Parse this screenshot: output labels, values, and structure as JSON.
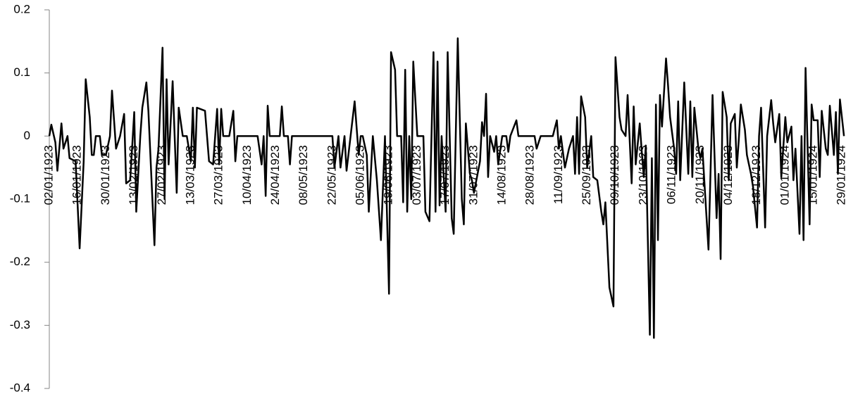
{
  "chart_data": {
    "type": "line",
    "color": "#000000",
    "xlim": [
      "02/01/1923",
      "31/01/1924"
    ],
    "xticks": [
      "02/01/1923",
      "16/01/1923",
      "30/01/1923",
      "13/02/1923",
      "27/02/1923",
      "13/03/1923",
      "27/03/1923",
      "10/04/1923",
      "24/04/1923",
      "08/05/1923",
      "22/05/1923",
      "05/06/1923",
      "19/06/1923",
      "03/07/1923",
      "17/07/1923",
      "31/07/1923",
      "14/08/1923",
      "28/08/1923",
      "11/09/1923",
      "25/09/1923",
      "09/10/1923",
      "23/10/1923",
      "06/11/1923",
      "20/11/1923",
      "04/12/1923",
      "18/12/1923",
      "01/01/1924",
      "15/01/1924",
      "29/01/1924"
    ],
    "ylim": [
      -0.4,
      0.2
    ],
    "yticks": [
      -0.4,
      -0.3,
      -0.2,
      -0.1,
      0,
      0.1,
      0.2
    ],
    "x": [
      "02/01/1923",
      "03/01/1923",
      "05/01/1923",
      "06/01/1923",
      "08/01/1923",
      "09/01/1923",
      "11/01/1923",
      "12/01/1923",
      "15/01/1923",
      "17/01/1923",
      "19/01/1923",
      "20/01/1923",
      "22/01/1923",
      "23/01/1923",
      "24/01/1923",
      "25/01/1923",
      "27/01/1923",
      "28/01/1923",
      "30/01/1923",
      "01/02/1923",
      "02/02/1923",
      "04/02/1923",
      "06/02/1923",
      "08/02/1923",
      "09/02/1923",
      "11/02/1923",
      "13/02/1923",
      "14/02/1923",
      "16/02/1923",
      "17/02/1923",
      "19/02/1923",
      "20/02/1923",
      "23/02/1923",
      "24/02/1923",
      "25/02/1923",
      "27/02/1923",
      "28/02/1923",
      "01/03/1923",
      "02/03/1923",
      "04/03/1923",
      "06/03/1923",
      "07/03/1923",
      "09/03/1923",
      "11/03/1923",
      "13/03/1923",
      "14/03/1923",
      "15/03/1923",
      "16/03/1923",
      "20/03/1923",
      "22/03/1923",
      "24/03/1923",
      "26/03/1923",
      "27/03/1923",
      "28/03/1923",
      "29/03/1923",
      "01/04/1923",
      "03/04/1923",
      "04/04/1923",
      "05/04/1923",
      "15/04/1923",
      "17/04/1923",
      "18/04/1923",
      "19/04/1923",
      "20/04/1923",
      "21/04/1923",
      "26/04/1923",
      "27/04/1923",
      "28/04/1923",
      "30/04/1923",
      "01/05/1923",
      "02/05/1923",
      "22/05/1923",
      "23/05/1923",
      "25/05/1923",
      "26/05/1923",
      "28/05/1923",
      "29/05/1923",
      "31/05/1923",
      "02/06/1923",
      "04/06/1923",
      "05/06/1923",
      "06/06/1923",
      "08/06/1923",
      "09/06/1923",
      "11/06/1923",
      "13/06/1923",
      "15/06/1923",
      "17/06/1923",
      "19/06/1923",
      "20/06/1923",
      "22/06/1923",
      "23/06/1923",
      "25/06/1923",
      "26/06/1923",
      "27/06/1923",
      "28/06/1923",
      "29/06/1923",
      "30/06/1923",
      "01/07/1923",
      "03/07/1923",
      "06/07/1923",
      "07/07/1923",
      "09/07/1923",
      "11/07/1923",
      "12/07/1923",
      "13/07/1923",
      "14/07/1923",
      "15/07/1923",
      "17/07/1923",
      "18/07/1923",
      "20/07/1923",
      "21/07/1923",
      "23/07/1923",
      "25/07/1923",
      "26/07/1923",
      "27/07/1923",
      "29/07/1923",
      "30/07/1923",
      "31/07/1923",
      "03/08/1923",
      "04/08/1923",
      "05/08/1923",
      "06/08/1923",
      "07/08/1923",
      "08/08/1923",
      "10/08/1923",
      "11/08/1923",
      "12/08/1923",
      "14/08/1923",
      "16/08/1923",
      "17/08/1923",
      "18/08/1923",
      "21/08/1923",
      "22/08/1923",
      "30/08/1923",
      "31/08/1923",
      "02/09/1923",
      "08/09/1923",
      "10/09/1923",
      "11/09/1923",
      "12/09/1923",
      "14/09/1923",
      "16/09/1923",
      "18/09/1923",
      "19/09/1923",
      "20/09/1923",
      "21/09/1923",
      "22/09/1923",
      "24/09/1923",
      "25/09/1923",
      "27/09/1923",
      "28/09/1923",
      "30/09/1923",
      "02/10/1923",
      "03/10/1923",
      "04/10/1923",
      "06/10/1923",
      "08/10/1923",
      "09/10/1923",
      "11/10/1923",
      "12/10/1923",
      "14/10/1923",
      "15/10/1923",
      "17/10/1923",
      "18/10/1923",
      "19/10/1923",
      "21/10/1923",
      "22/10/1923",
      "23/10/1923",
      "24/10/1923",
      "26/10/1923",
      "27/10/1923",
      "28/10/1923",
      "29/10/1923",
      "30/10/1923",
      "31/10/1923",
      "01/11/1923",
      "03/11/1923",
      "04/11/1923",
      "05/11/1923",
      "07/11/1923",
      "08/11/1923",
      "09/11/1923",
      "10/11/1923",
      "12/11/1923",
      "14/11/1923",
      "15/11/1923",
      "16/11/1923",
      "17/11/1923",
      "19/11/1923",
      "20/11/1923",
      "21/11/1923",
      "22/11/1923",
      "24/11/1923",
      "26/11/1923",
      "28/11/1923",
      "29/11/1923",
      "30/11/1923",
      "01/12/1923",
      "03/12/1923",
      "04/12/1923",
      "05/12/1923",
      "07/12/1923",
      "08/12/1923",
      "09/12/1923",
      "10/12/1923",
      "12/12/1923",
      "13/12/1923",
      "15/12/1923",
      "16/12/1923",
      "18/12/1923",
      "19/12/1923",
      "20/12/1923",
      "22/12/1923",
      "23/12/1923",
      "25/12/1923",
      "26/12/1923",
      "27/12/1923",
      "29/12/1923",
      "30/12/1923",
      "01/01/1924",
      "02/01/1924",
      "04/01/1924",
      "05/01/1924",
      "06/01/1924",
      "08/01/1924",
      "09/01/1924",
      "10/01/1924",
      "11/01/1924",
      "13/01/1924",
      "14/01/1924",
      "15/01/1924",
      "17/01/1924",
      "18/01/1924",
      "19/01/1924",
      "21/01/1924",
      "22/01/1924",
      "23/01/1924",
      "25/01/1924",
      "26/01/1924",
      "27/01/1924",
      "28/01/1924",
      "30/01/1924"
    ],
    "values": [
      0,
      0.018,
      -0.01,
      -0.055,
      0.02,
      -0.02,
      0,
      -0.035,
      -0.04,
      -0.178,
      -0.04,
      0.09,
      0.03,
      -0.03,
      -0.03,
      0,
      0,
      -0.03,
      -0.03,
      0,
      0.072,
      -0.02,
      0,
      0.035,
      -0.075,
      -0.07,
      0.038,
      -0.12,
      0,
      0.045,
      0.085,
      0.04,
      -0.173,
      -0.05,
      -0.02,
      0.14,
      -0.1,
      0.09,
      -0.045,
      0.087,
      -0.09,
      0.045,
      0,
      0,
      -0.04,
      0.045,
      -0.05,
      0.045,
      0.04,
      -0.04,
      -0.045,
      0.043,
      -0.045,
      0.043,
      0,
      0,
      0.04,
      -0.04,
      0,
      0,
      -0.045,
      0,
      -0.095,
      0.048,
      0,
      0,
      0.047,
      0,
      0,
      -0.045,
      0,
      0,
      -0.05,
      0,
      -0.05,
      0,
      -0.055,
      0,
      0.055,
      -0.03,
      0,
      0,
      -0.03,
      -0.12,
      0,
      -0.07,
      -0.165,
      0,
      -0.25,
      0.133,
      0.105,
      0,
      0,
      -0.105,
      0.105,
      -0.12,
      0,
      -0.1,
      0.118,
      0,
      0,
      -0.12,
      -0.135,
      0.133,
      -0.12,
      0.118,
      -0.11,
      0,
      -0.12,
      0.133,
      -0.13,
      -0.155,
      0.155,
      -0.1,
      -0.14,
      0.02,
      -0.06,
      -0.07,
      -0.09,
      -0.04,
      0.022,
      0,
      0.067,
      -0.065,
      0,
      -0.025,
      0,
      -0.045,
      0,
      0,
      -0.025,
      0,
      0.025,
      0,
      0,
      -0.02,
      0,
      0,
      0.025,
      -0.02,
      0,
      -0.05,
      -0.02,
      0,
      -0.06,
      0.03,
      -0.06,
      0.063,
      0.03,
      -0.05,
      0,
      -0.065,
      -0.07,
      -0.12,
      -0.14,
      -0.105,
      -0.24,
      -0.27,
      0.125,
      0.03,
      0.01,
      0,
      0.065,
      -0.075,
      0.047,
      -0.045,
      0.02,
      -0.025,
      -0.065,
      -0.015,
      -0.315,
      -0.035,
      -0.32,
      0.05,
      -0.165,
      0.065,
      0.015,
      0.123,
      0.08,
      0.03,
      -0.02,
      -0.06,
      0.055,
      -0.07,
      0.085,
      -0.06,
      0.055,
      -0.065,
      0.045,
      -0.02,
      -0.035,
      -0.02,
      -0.075,
      -0.18,
      0.065,
      -0.13,
      -0.06,
      -0.195,
      0.07,
      0.03,
      -0.07,
      0.02,
      0.035,
      -0.05,
      -0.005,
      0.05,
      0.01,
      -0.03,
      -0.06,
      -0.08,
      -0.145,
      0,
      0.045,
      -0.145,
      0,
      0.057,
      0.02,
      -0.01,
      0.035,
      -0.065,
      0.03,
      -0.01,
      0.015,
      -0.07,
      -0.02,
      -0.155,
      0,
      -0.165,
      0.108,
      -0.14,
      0.05,
      0.025,
      0.025,
      -0.065,
      0.04,
      -0.02,
      -0.03,
      0.048,
      -0.03,
      0.038,
      -0.06,
      0.058,
      0
    ]
  }
}
